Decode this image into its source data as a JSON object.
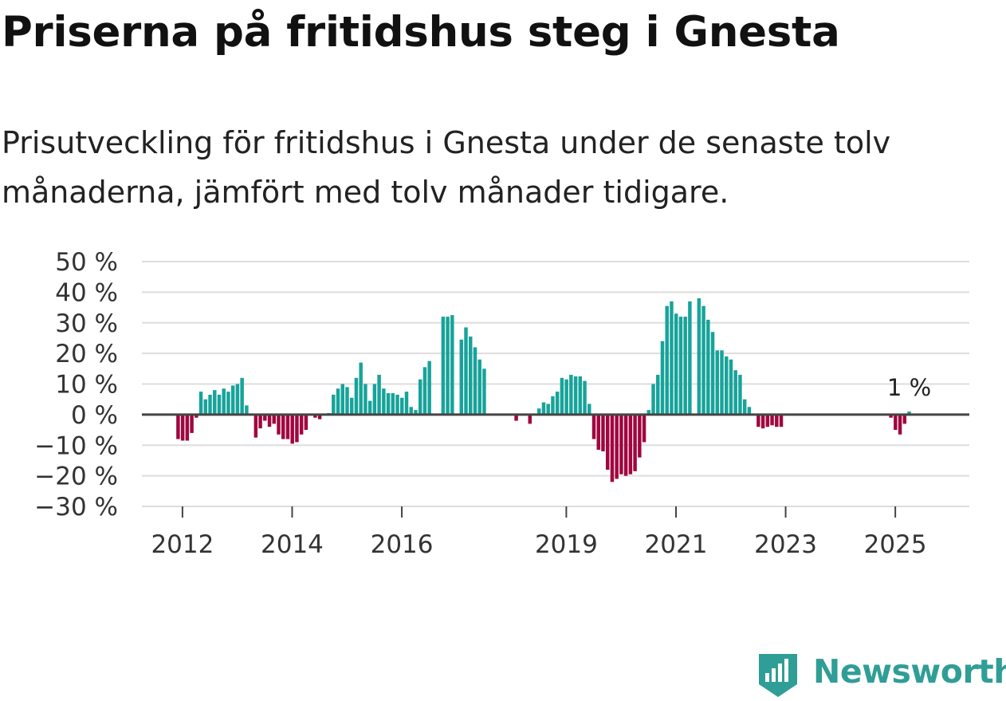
{
  "header": {
    "title": "Priserna på fritidshus steg i Gnesta",
    "subtitle": "Prisutveckling för fritidshus i Gnesta under de senaste tolv månaderna, jämfört med tolv månader tidigare."
  },
  "brand": {
    "name": "Newsworthy"
  },
  "colors": {
    "positive": "#17a39a",
    "negative": "#a0063f",
    "grid": "#dddddd",
    "zero_line": "#444444"
  },
  "chart_data": {
    "type": "bar",
    "title": "Priserna på fritidshus steg i Gnesta",
    "xlabel": "",
    "ylabel": "",
    "ylim": [
      -30,
      50
    ],
    "y_ticks": [
      50,
      40,
      30,
      20,
      10,
      0,
      -10,
      -20,
      -30
    ],
    "y_tick_labels": [
      "50 %",
      "40 %",
      "30 %",
      "20 %",
      "10 %",
      "0 %",
      "−10 %",
      "−20 %",
      "−30 %"
    ],
    "x_ticks": [
      2012,
      2014,
      2016,
      2019,
      2021,
      2023,
      2025
    ],
    "x_tick_labels": [
      "2012",
      "2014",
      "2016",
      "2019",
      "2021",
      "2023",
      "2025"
    ],
    "x_range": [
      2011.26,
      2026.35
    ],
    "start": 2011.92,
    "step": 0.08333,
    "values": [
      -8,
      -8.5,
      -8.5,
      -6,
      -1,
      7.5,
      5,
      6.5,
      8,
      6.5,
      8.5,
      7.5,
      9.5,
      10,
      12,
      3,
      0,
      -7.5,
      -4.5,
      -2,
      -4,
      -3,
      -6.5,
      -8,
      -8,
      -9.5,
      -9,
      -6.5,
      -5,
      0,
      -1,
      -1.5,
      0,
      0.5,
      6.5,
      8.5,
      10,
      9,
      5.5,
      12,
      17,
      10,
      4.5,
      10,
      13,
      8.5,
      7,
      7,
      6.5,
      5.5,
      7.5,
      2.5,
      1.5,
      11.5,
      15.5,
      17.5,
      0,
      0,
      32,
      32,
      32.5,
      0,
      24.5,
      28.5,
      25.5,
      22,
      18,
      15,
      0,
      0,
      0,
      0,
      0,
      0,
      -2,
      0,
      0,
      -3,
      0,
      2,
      4,
      3.5,
      6,
      7.5,
      12,
      11.5,
      13,
      12.5,
      12.5,
      11,
      3.5,
      -8,
      -11.5,
      -12,
      -18,
      -22,
      -21,
      -19.5,
      -20,
      -19.5,
      -18.5,
      -14,
      -9,
      1.5,
      10,
      13,
      24,
      35.5,
      37,
      33,
      32,
      32,
      37,
      0,
      38,
      35.5,
      31,
      27,
      21,
      21,
      19,
      18,
      14.5,
      13,
      5,
      2.5,
      0,
      -4,
      -4.5,
      -4,
      -3.5,
      -4,
      -4,
      0,
      0,
      0,
      0,
      0,
      0,
      0,
      0,
      0,
      0,
      0,
      0,
      0,
      0,
      0,
      0,
      0,
      0,
      0,
      0,
      0,
      0,
      0,
      -1,
      -5,
      -6.5,
      -3,
      1
    ],
    "end_label": "1 %"
  }
}
